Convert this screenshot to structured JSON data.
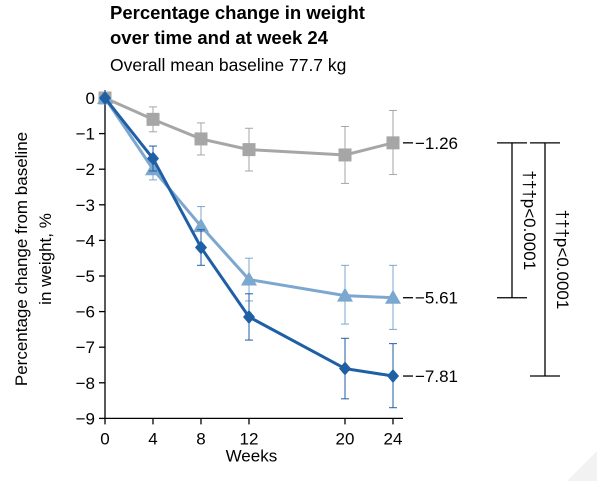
{
  "chart_data": {
    "type": "line",
    "title_line1": "Percentage change in weight",
    "title_line2": "over time and at week 24",
    "subtitle": "Overall mean baseline 77.7 kg",
    "ylabel_line1": "Percentage change from baseline",
    "ylabel_line2": "in weight, %",
    "xlabel": "Weeks",
    "x_ticks": [
      0,
      4,
      8,
      12,
      20,
      24
    ],
    "y_ticks": [
      0,
      -1,
      -2,
      -3,
      -4,
      -5,
      -6,
      -7,
      -8,
      -9
    ],
    "ylim": [
      -9,
      0
    ],
    "xlim": [
      0,
      24
    ],
    "series": [
      {
        "marker": "square",
        "color": "#a6a6a6",
        "x": [
          0,
          4,
          8,
          12,
          20,
          24
        ],
        "y": [
          0,
          -0.6,
          -1.15,
          -1.45,
          -1.6,
          -1.26
        ],
        "err_low": [
          0,
          -0.95,
          -1.6,
          -2.05,
          -2.4,
          -2.15
        ],
        "err_high": [
          0,
          -0.25,
          -0.7,
          -0.85,
          -0.8,
          -0.35
        ],
        "end_label": "−1.26"
      },
      {
        "marker": "triangle",
        "color": "#7ca7cf",
        "x": [
          0,
          4,
          8,
          12,
          20,
          24
        ],
        "y": [
          0,
          -2.0,
          -3.6,
          -5.1,
          -5.55,
          -5.61
        ],
        "err_low": [
          0,
          -2.3,
          -4.15,
          -5.7,
          -6.35,
          -6.5
        ],
        "err_high": [
          0,
          -1.7,
          -3.05,
          -4.5,
          -4.7,
          -4.7
        ],
        "end_label": "−5.61"
      },
      {
        "marker": "diamond",
        "color": "#1f5fa5",
        "x": [
          0,
          4,
          8,
          12,
          20,
          24
        ],
        "y": [
          0,
          -1.7,
          -4.2,
          -6.15,
          -7.6,
          -7.81
        ],
        "err_low": [
          0,
          -2.05,
          -4.7,
          -6.8,
          -8.45,
          -8.7
        ],
        "err_high": [
          0,
          -1.35,
          -3.7,
          -5.5,
          -6.75,
          -6.9
        ],
        "end_label": "−7.81"
      }
    ],
    "brackets": [
      {
        "from": -1.26,
        "to": -5.61,
        "label": "†††p<0.0001"
      },
      {
        "from": -1.26,
        "to": -7.81,
        "label": "†††p<0.0001"
      }
    ]
  }
}
